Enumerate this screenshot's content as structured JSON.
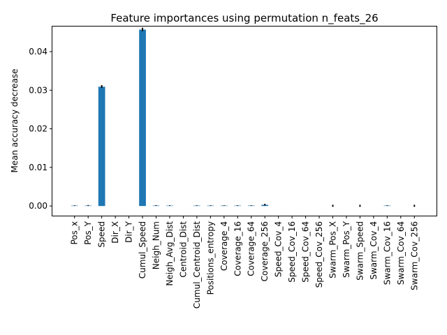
{
  "chart_data": {
    "type": "bar",
    "title": "Feature importances using permutation n_feats_26",
    "xlabel": "",
    "ylabel": "Mean accuracy decrease",
    "ylim": [
      -0.0025,
      0.0465
    ],
    "yticks": [
      0.0,
      0.01,
      0.02,
      0.03,
      0.04
    ],
    "ytick_labels": [
      "0.00",
      "0.01",
      "0.02",
      "0.03",
      "0.04"
    ],
    "grid": false,
    "bar_color": "#1f77b4",
    "error_color": "#000000",
    "categories": [
      "Pos_x",
      "Pos_Y",
      "Speed",
      "Dir_X",
      "Dir_Y",
      "Cumul_Speed",
      "Neigh_Num",
      "Neigh_Avg_Dist",
      "Centroid_Dist",
      "Cumul_Centroid_Dist",
      "Positions_entropy",
      "Coverage_4",
      "Coverage_16",
      "Coverage_64",
      "Coverage_256",
      "Speed_Cov_4",
      "Speed_Cov_16",
      "Speed_Cov_64",
      "Speed_Cov_256",
      "Swarm_Pos_X",
      "Swarm_Pos_Y",
      "Swarm_Speed",
      "Swarm_Cov_4",
      "Swarm_Cov_16",
      "Swarm_Cov_64",
      "Swarm_Cov_256"
    ],
    "values": [
      5e-05,
      0.0001,
      0.0309,
      0.0,
      0.0,
      0.0457,
      8e-05,
      6e-05,
      0.0,
      5e-05,
      5e-05,
      5e-05,
      5e-05,
      6e-05,
      0.0003,
      0.0,
      0.0,
      0.0,
      0.0,
      0.0,
      0.0,
      0.0,
      0.0,
      6e-05,
      0.0,
      0.0
    ],
    "errors": [
      2e-05,
      4e-05,
      0.0003,
      0.0,
      0.0,
      0.0004,
      3e-05,
      2e-05,
      0.0,
      2e-05,
      2e-05,
      2e-05,
      2e-05,
      2e-05,
      0.00015,
      0.0,
      0.0,
      0.0,
      0.0,
      0.0002,
      0.0,
      0.0002,
      0.0,
      2e-05,
      0.0,
      0.0002
    ]
  }
}
